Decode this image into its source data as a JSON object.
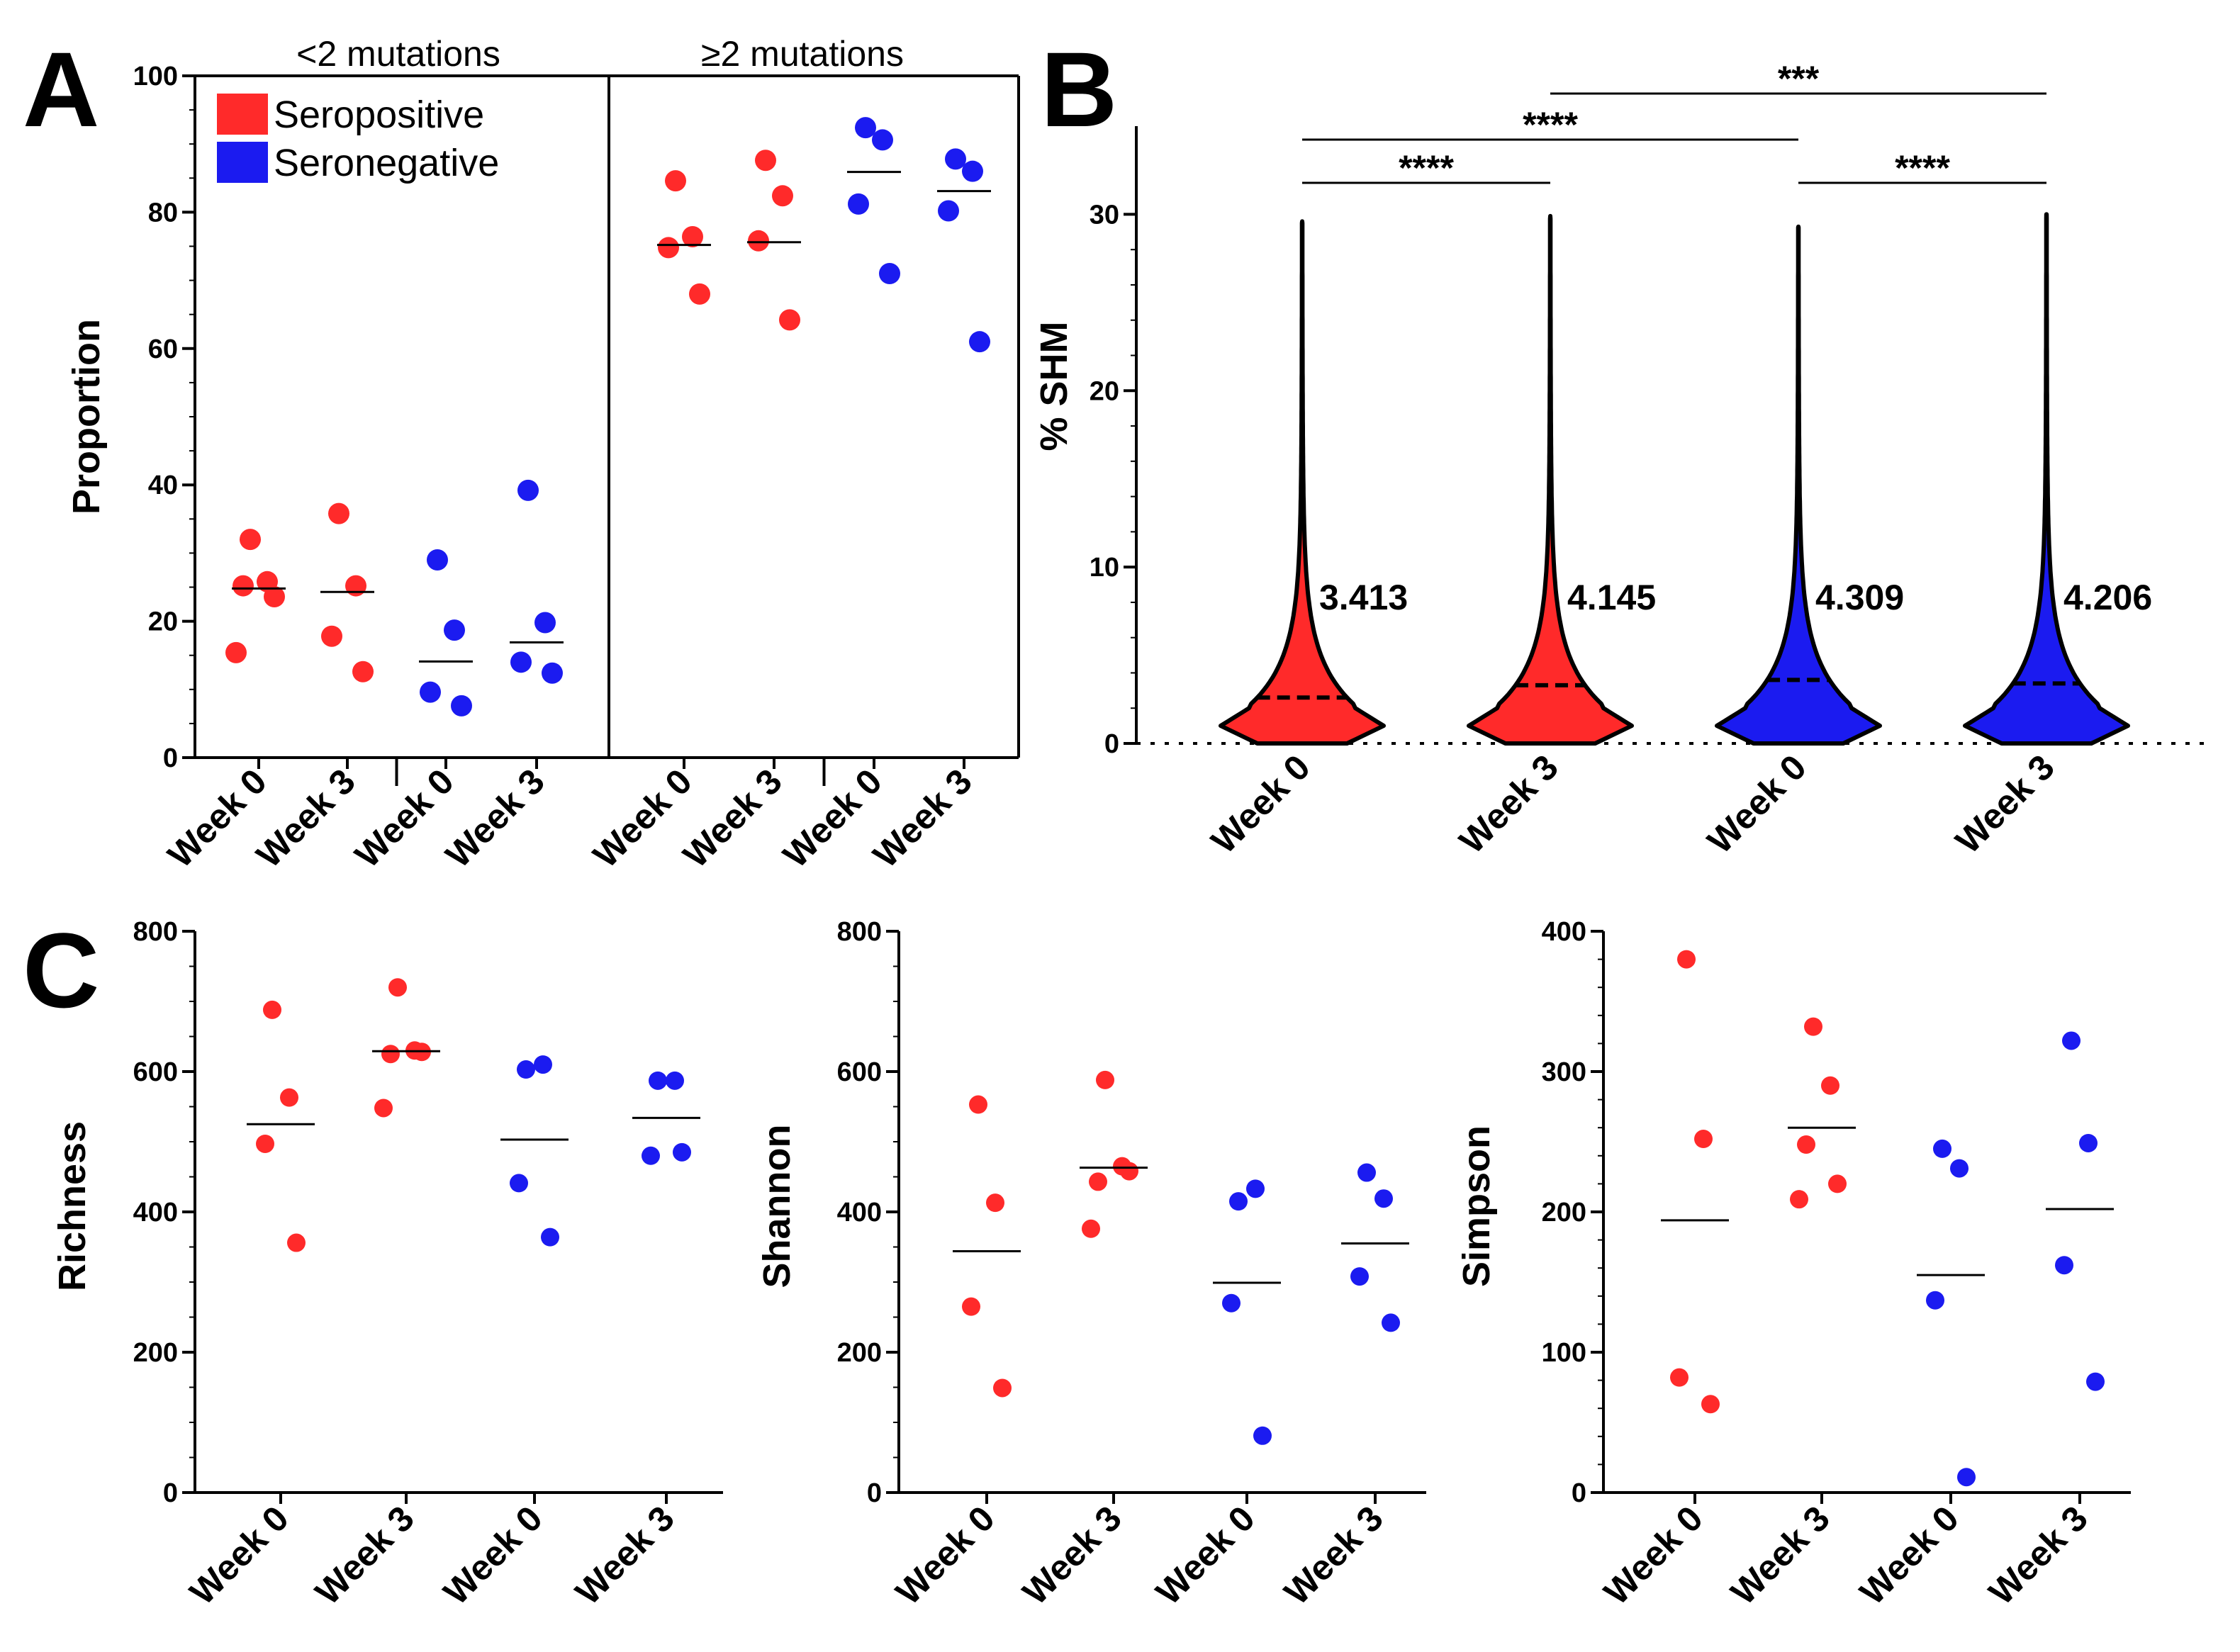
{
  "colors": {
    "red": "#ff2a2a",
    "blue": "#1b1bf0",
    "black": "#000000"
  },
  "chart_data": [
    {
      "id": "A",
      "panel_label": "A",
      "type": "scatter",
      "ylabel": "Proportion",
      "ylim": [
        0,
        100
      ],
      "yticks": [
        0,
        20,
        40,
        60,
        80,
        100
      ],
      "legend": [
        {
          "name": "Seropositive",
          "color": "#ff2a2a"
        },
        {
          "name": "Seronegative",
          "color": "#1b1bf0"
        }
      ],
      "sections": [
        {
          "title": "<2 mutations",
          "groups": [
            {
              "label": "Week 0",
              "color": "#ff2a2a",
              "mean": 24.8,
              "points": [
                32.0,
                25.8,
                25.2,
                23.6,
                15.4
              ]
            },
            {
              "label": "Week 3",
              "color": "#ff2a2a",
              "mean": 24.3,
              "points": [
                35.8,
                25.2,
                17.8,
                12.6
              ]
            },
            {
              "label": "Week 0",
              "color": "#1b1bf0",
              "mean": 14.1,
              "points": [
                29.0,
                18.7,
                9.6,
                7.6
              ]
            },
            {
              "label": "Week 3",
              "color": "#1b1bf0",
              "mean": 16.9,
              "points": [
                39.2,
                19.8,
                14.0,
                12.4
              ]
            }
          ]
        },
        {
          "title": "≥2 mutations",
          "groups": [
            {
              "label": "Week 0",
              "color": "#ff2a2a",
              "mean": 75.2,
              "points": [
                84.6,
                76.4,
                74.8,
                68.0
              ]
            },
            {
              "label": "Week 3",
              "color": "#ff2a2a",
              "mean": 75.6,
              "points": [
                87.6,
                82.4,
                75.8,
                64.2
              ]
            },
            {
              "label": "Week 0",
              "color": "#1b1bf0",
              "mean": 85.9,
              "points": [
                92.4,
                90.6,
                81.2,
                71.0
              ]
            },
            {
              "label": "Week 3",
              "color": "#1b1bf0",
              "mean": 83.1,
              "points": [
                87.8,
                86.0,
                80.2,
                61.0
              ]
            }
          ]
        }
      ]
    },
    {
      "id": "B",
      "panel_label": "B",
      "type": "violin",
      "ylabel": "% SHM",
      "ylim": [
        0,
        35
      ],
      "yticks": [
        0,
        10,
        20,
        30
      ],
      "groups": [
        {
          "label": "Week 0",
          "color": "#ff2a2a",
          "median": 2.6,
          "max": 29.6,
          "annotation": "3.413"
        },
        {
          "label": "Week 3",
          "color": "#ff2a2a",
          "median": 3.3,
          "max": 29.9,
          "annotation": "4.145"
        },
        {
          "label": "Week 0",
          "color": "#1b1bf0",
          "median": 3.6,
          "max": 29.3,
          "annotation": "4.309"
        },
        {
          "label": "Week 3",
          "color": "#1b1bf0",
          "median": 3.4,
          "max": 30.0,
          "annotation": "4.206"
        }
      ],
      "significance": [
        {
          "from": 0,
          "to": 1,
          "stars": "****"
        },
        {
          "from": 0,
          "to": 2,
          "stars": "****"
        },
        {
          "from": 1,
          "to": 3,
          "stars": "***"
        },
        {
          "from": 2,
          "to": 3,
          "stars": "****"
        }
      ]
    },
    {
      "id": "C1",
      "panel_label": "C",
      "type": "scatter",
      "ylabel": "Richness",
      "ylim": [
        0,
        800
      ],
      "yticks": [
        0,
        200,
        400,
        600,
        800
      ],
      "groups": [
        {
          "label": "Week 0",
          "color": "#ff2a2a",
          "mean": 525,
          "points": [
            688,
            563,
            497,
            356
          ]
        },
        {
          "label": "Week 3",
          "color": "#ff2a2a",
          "mean": 629,
          "points": [
            720,
            630,
            625,
            628,
            548
          ]
        },
        {
          "label": "Week 0",
          "color": "#1b1bf0",
          "mean": 503,
          "points": [
            603,
            610,
            441,
            364
          ]
        },
        {
          "label": "Week 3",
          "color": "#1b1bf0",
          "mean": 534,
          "points": [
            587,
            587,
            480,
            485
          ]
        }
      ]
    },
    {
      "id": "C2",
      "type": "scatter",
      "ylabel": "Shannon",
      "ylim": [
        0,
        800
      ],
      "yticks": [
        0,
        200,
        400,
        600,
        800
      ],
      "groups": [
        {
          "label": "Week 0",
          "color": "#ff2a2a",
          "mean": 344,
          "points": [
            553,
            413,
            265,
            149
          ]
        },
        {
          "label": "Week 3",
          "color": "#ff2a2a",
          "mean": 463,
          "points": [
            588,
            465,
            443,
            458,
            376
          ]
        },
        {
          "label": "Week 0",
          "color": "#1b1bf0",
          "mean": 299,
          "points": [
            415,
            433,
            270,
            81
          ]
        },
        {
          "label": "Week 3",
          "color": "#1b1bf0",
          "mean": 355,
          "points": [
            456,
            419,
            308,
            242
          ]
        }
      ]
    },
    {
      "id": "C3",
      "type": "scatter",
      "ylabel": "Simpson",
      "ylim": [
        0,
        400
      ],
      "yticks": [
        0,
        100,
        200,
        300,
        400
      ],
      "groups": [
        {
          "label": "Week 0",
          "color": "#ff2a2a",
          "mean": 194,
          "points": [
            380,
            252,
            82,
            63
          ]
        },
        {
          "label": "Week 3",
          "color": "#ff2a2a",
          "mean": 260,
          "points": [
            332,
            290,
            248,
            220,
            209
          ]
        },
        {
          "label": "Week 0",
          "color": "#1b1bf0",
          "mean": 155,
          "points": [
            245,
            231,
            137,
            11
          ]
        },
        {
          "label": "Week 3",
          "color": "#1b1bf0",
          "mean": 202,
          "points": [
            322,
            249,
            162,
            79
          ]
        }
      ]
    }
  ]
}
